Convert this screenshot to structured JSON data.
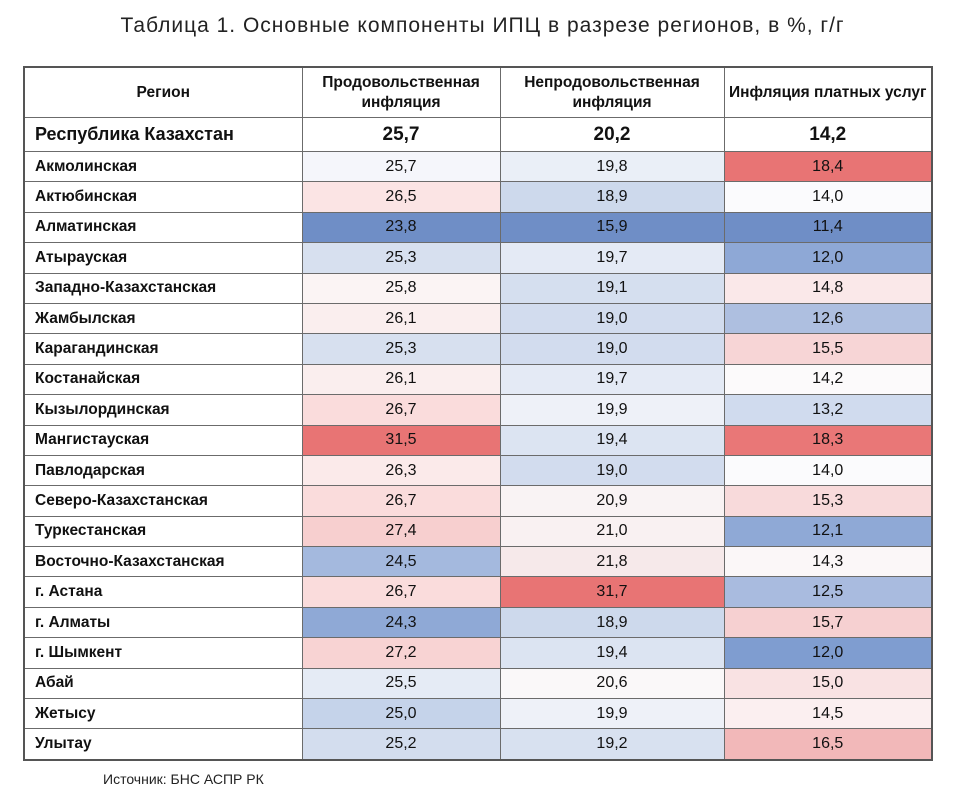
{
  "title": "Таблица 1. Основные компоненты ИПЦ в разрезе регионов, в %, г/г",
  "headers": {
    "region": "Регион",
    "food": "Продовольственная инфляция",
    "nonfood": "Непродовольственная инфляция",
    "services": "Инфляция платных услуг"
  },
  "total": {
    "name": "Республика Казахстан",
    "food": "25,7",
    "nonfood": "20,2",
    "services": "14,2"
  },
  "rows": [
    {
      "name": "Акмолинская",
      "food": "25,7",
      "nonfood": "19,8",
      "services": "18,4",
      "c": [
        "#f5f6fb",
        "#eaeff7",
        "#e87474"
      ]
    },
    {
      "name": "Актюбинская",
      "food": "26,5",
      "nonfood": "18,9",
      "services": "14,0",
      "c": [
        "#fbe4e4",
        "#cdd9ec",
        "#fbfbfd"
      ]
    },
    {
      "name": "Алматинская",
      "food": "23,8",
      "nonfood": "15,9",
      "services": "11,4",
      "c": [
        "#6f8ec6",
        "#6f8ec6",
        "#6f8ec6"
      ]
    },
    {
      "name": "Атырауская",
      "food": "25,3",
      "nonfood": "19,7",
      "services": "12,0",
      "c": [
        "#d7e0ef",
        "#e4eaf5",
        "#8ea8d6"
      ]
    },
    {
      "name": "Западно-Казахстанская",
      "food": "25,8",
      "nonfood": "19,1",
      "services": "14,8",
      "c": [
        "#fbf4f4",
        "#d5dfef",
        "#fae8e9"
      ]
    },
    {
      "name": "Жамбылская",
      "food": "26,1",
      "nonfood": "19,0",
      "services": "12,6",
      "c": [
        "#faeeee",
        "#d2dcee",
        "#aebfe0"
      ]
    },
    {
      "name": "Карагандинская",
      "food": "25,3",
      "nonfood": "19,0",
      "services": "15,5",
      "c": [
        "#d7e0ef",
        "#d2dcee",
        "#f7d5d6"
      ]
    },
    {
      "name": "Костанайская",
      "food": "26,1",
      "nonfood": "19,7",
      "services": "14,2",
      "c": [
        "#faeeee",
        "#e4eaf5",
        "#fcfafb"
      ]
    },
    {
      "name": "Кызылординская",
      "food": "26,7",
      "nonfood": "19,9",
      "services": "13,2",
      "c": [
        "#fadcdc",
        "#eef1f8",
        "#d0dbee"
      ]
    },
    {
      "name": "Мангистауская",
      "food": "31,5",
      "nonfood": "19,4",
      "services": "18,3",
      "c": [
        "#e87474",
        "#dce4f2",
        "#e97777"
      ]
    },
    {
      "name": "Павлодарская",
      "food": "26,3",
      "nonfood": "19,0",
      "services": "14,0",
      "c": [
        "#fbeaea",
        "#d2dcee",
        "#fbfbfd"
      ]
    },
    {
      "name": "Северо-Казахстанская",
      "food": "26,7",
      "nonfood": "20,9",
      "services": "15,3",
      "c": [
        "#fadcdc",
        "#f9f3f4",
        "#f8dadb"
      ]
    },
    {
      "name": "Туркестанская",
      "food": "27,4",
      "nonfood": "21,0",
      "services": "12,1",
      "c": [
        "#f7cfcf",
        "#f9f1f2",
        "#8fa9d6"
      ]
    },
    {
      "name": "Восточно-Казахстанская",
      "food": "24,5",
      "nonfood": "21,8",
      "services": "14,3",
      "c": [
        "#a4b9de",
        "#f6e9ea",
        "#fbf7f8"
      ]
    },
    {
      "name": "г. Астана",
      "food": "26,7",
      "nonfood": "31,7",
      "services": "12,5",
      "c": [
        "#fadcdc",
        "#e87474",
        "#a9bbdf"
      ]
    },
    {
      "name": "г. Алматы",
      "food": "24,3",
      "nonfood": "18,9",
      "services": "15,7",
      "c": [
        "#8fa9d6",
        "#cdd9ec",
        "#f6d0d1"
      ]
    },
    {
      "name": "г. Шымкент",
      "food": "27,2",
      "nonfood": "19,4",
      "services": "12,0",
      "c": [
        "#f8d3d3",
        "#dce4f2",
        "#7f9dd0"
      ]
    },
    {
      "name": "Абай",
      "food": "25,5",
      "nonfood": "20,6",
      "services": "15,0",
      "c": [
        "#e5ebf5",
        "#faf8f9",
        "#f9e2e3"
      ]
    },
    {
      "name": "Жетысу",
      "food": "25,0",
      "nonfood": "19,9",
      "services": "14,5",
      "c": [
        "#c5d3ea",
        "#eef1f8",
        "#fbeff0"
      ]
    },
    {
      "name": "Улытау",
      "food": "25,2",
      "nonfood": "19,2",
      "services": "16,5",
      "c": [
        "#d3ddee",
        "#d8e1f0",
        "#f2b8b9"
      ]
    }
  ],
  "source": "Источник: БНС АСПР РК"
}
